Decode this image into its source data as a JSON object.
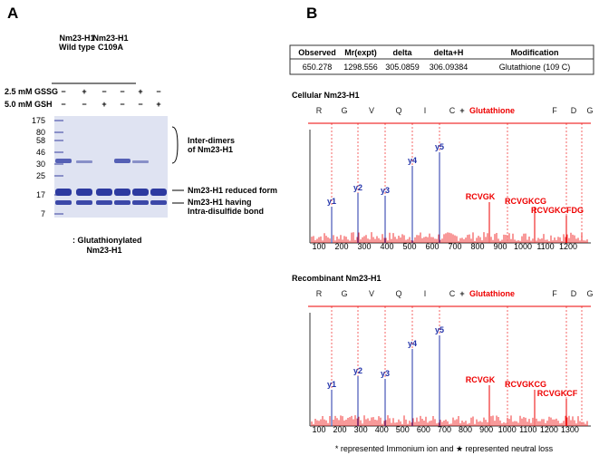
{
  "panel_a": {
    "label": "A",
    "groups": [
      [
        "Nm23-H1",
        "Wild type"
      ],
      [
        "Nm23-H1",
        "C109A"
      ]
    ],
    "treatments": [
      {
        "name": "2.5 mM GSSG",
        "signs": [
          "−",
          "+",
          "−",
          "−",
          "+",
          "−"
        ]
      },
      {
        "name": "5.0 mM GSH",
        "signs": [
          "−",
          "−",
          "+",
          "−",
          "−",
          "+"
        ]
      }
    ],
    "markers": [
      "175",
      "80",
      "58",
      "46",
      "30",
      "25",
      "17",
      "7"
    ],
    "annotations": [
      [
        "Inter-dimers",
        "of Nm23-H1"
      ],
      [
        "Nm23-H1 reduced form"
      ],
      [
        "Nm23-H1 having",
        "Intra-disulfide bond"
      ]
    ],
    "legend": [
      ": Glutathionylated",
      "Nm23-H1"
    ]
  },
  "panel_b": {
    "label": "B",
    "table": {
      "header": [
        "Observed",
        "Mr(expt)",
        "delta",
        "delta+H",
        "Modification"
      ],
      "rows": [
        [
          "650.278",
          "1298.556",
          "305.0859",
          "306.09384",
          "Glutathione (109 C)"
        ]
      ]
    },
    "spectra": [
      {
        "title": "Cellular Nm23-H1",
        "sequence": [
          "R",
          "G",
          "V",
          "Q",
          "I",
          "C",
          "+",
          "Glutathione",
          "F",
          "D",
          "G"
        ],
        "peak_labels": [
          "y1",
          "y2",
          "y3",
          "y4",
          "y5",
          "RCVGK",
          "RCVGKCG",
          "RCVGKCFDG"
        ],
        "ticks": [
          "100",
          "200",
          "300",
          "400",
          "500",
          "600",
          "700",
          "800",
          "900",
          "1000",
          "1100",
          "1200"
        ]
      },
      {
        "title": "Recombinant Nm23-H1",
        "sequence": [
          "R",
          "G",
          "V",
          "Q",
          "I",
          "C",
          "+",
          "Glutathione",
          "F",
          "D",
          "G"
        ],
        "peak_labels": [
          "y1",
          "y2",
          "y3",
          "y4",
          "y5",
          "RCVGK",
          "RCVGKCG",
          "RCVGKCF"
        ],
        "ticks": [
          "100",
          "200",
          "300",
          "400",
          "500",
          "600",
          "700",
          "800",
          "900",
          "1000",
          "1100",
          "1200",
          "1300"
        ]
      }
    ],
    "footnote": "* represented Immonium ion and ★ represented neutral loss"
  }
}
